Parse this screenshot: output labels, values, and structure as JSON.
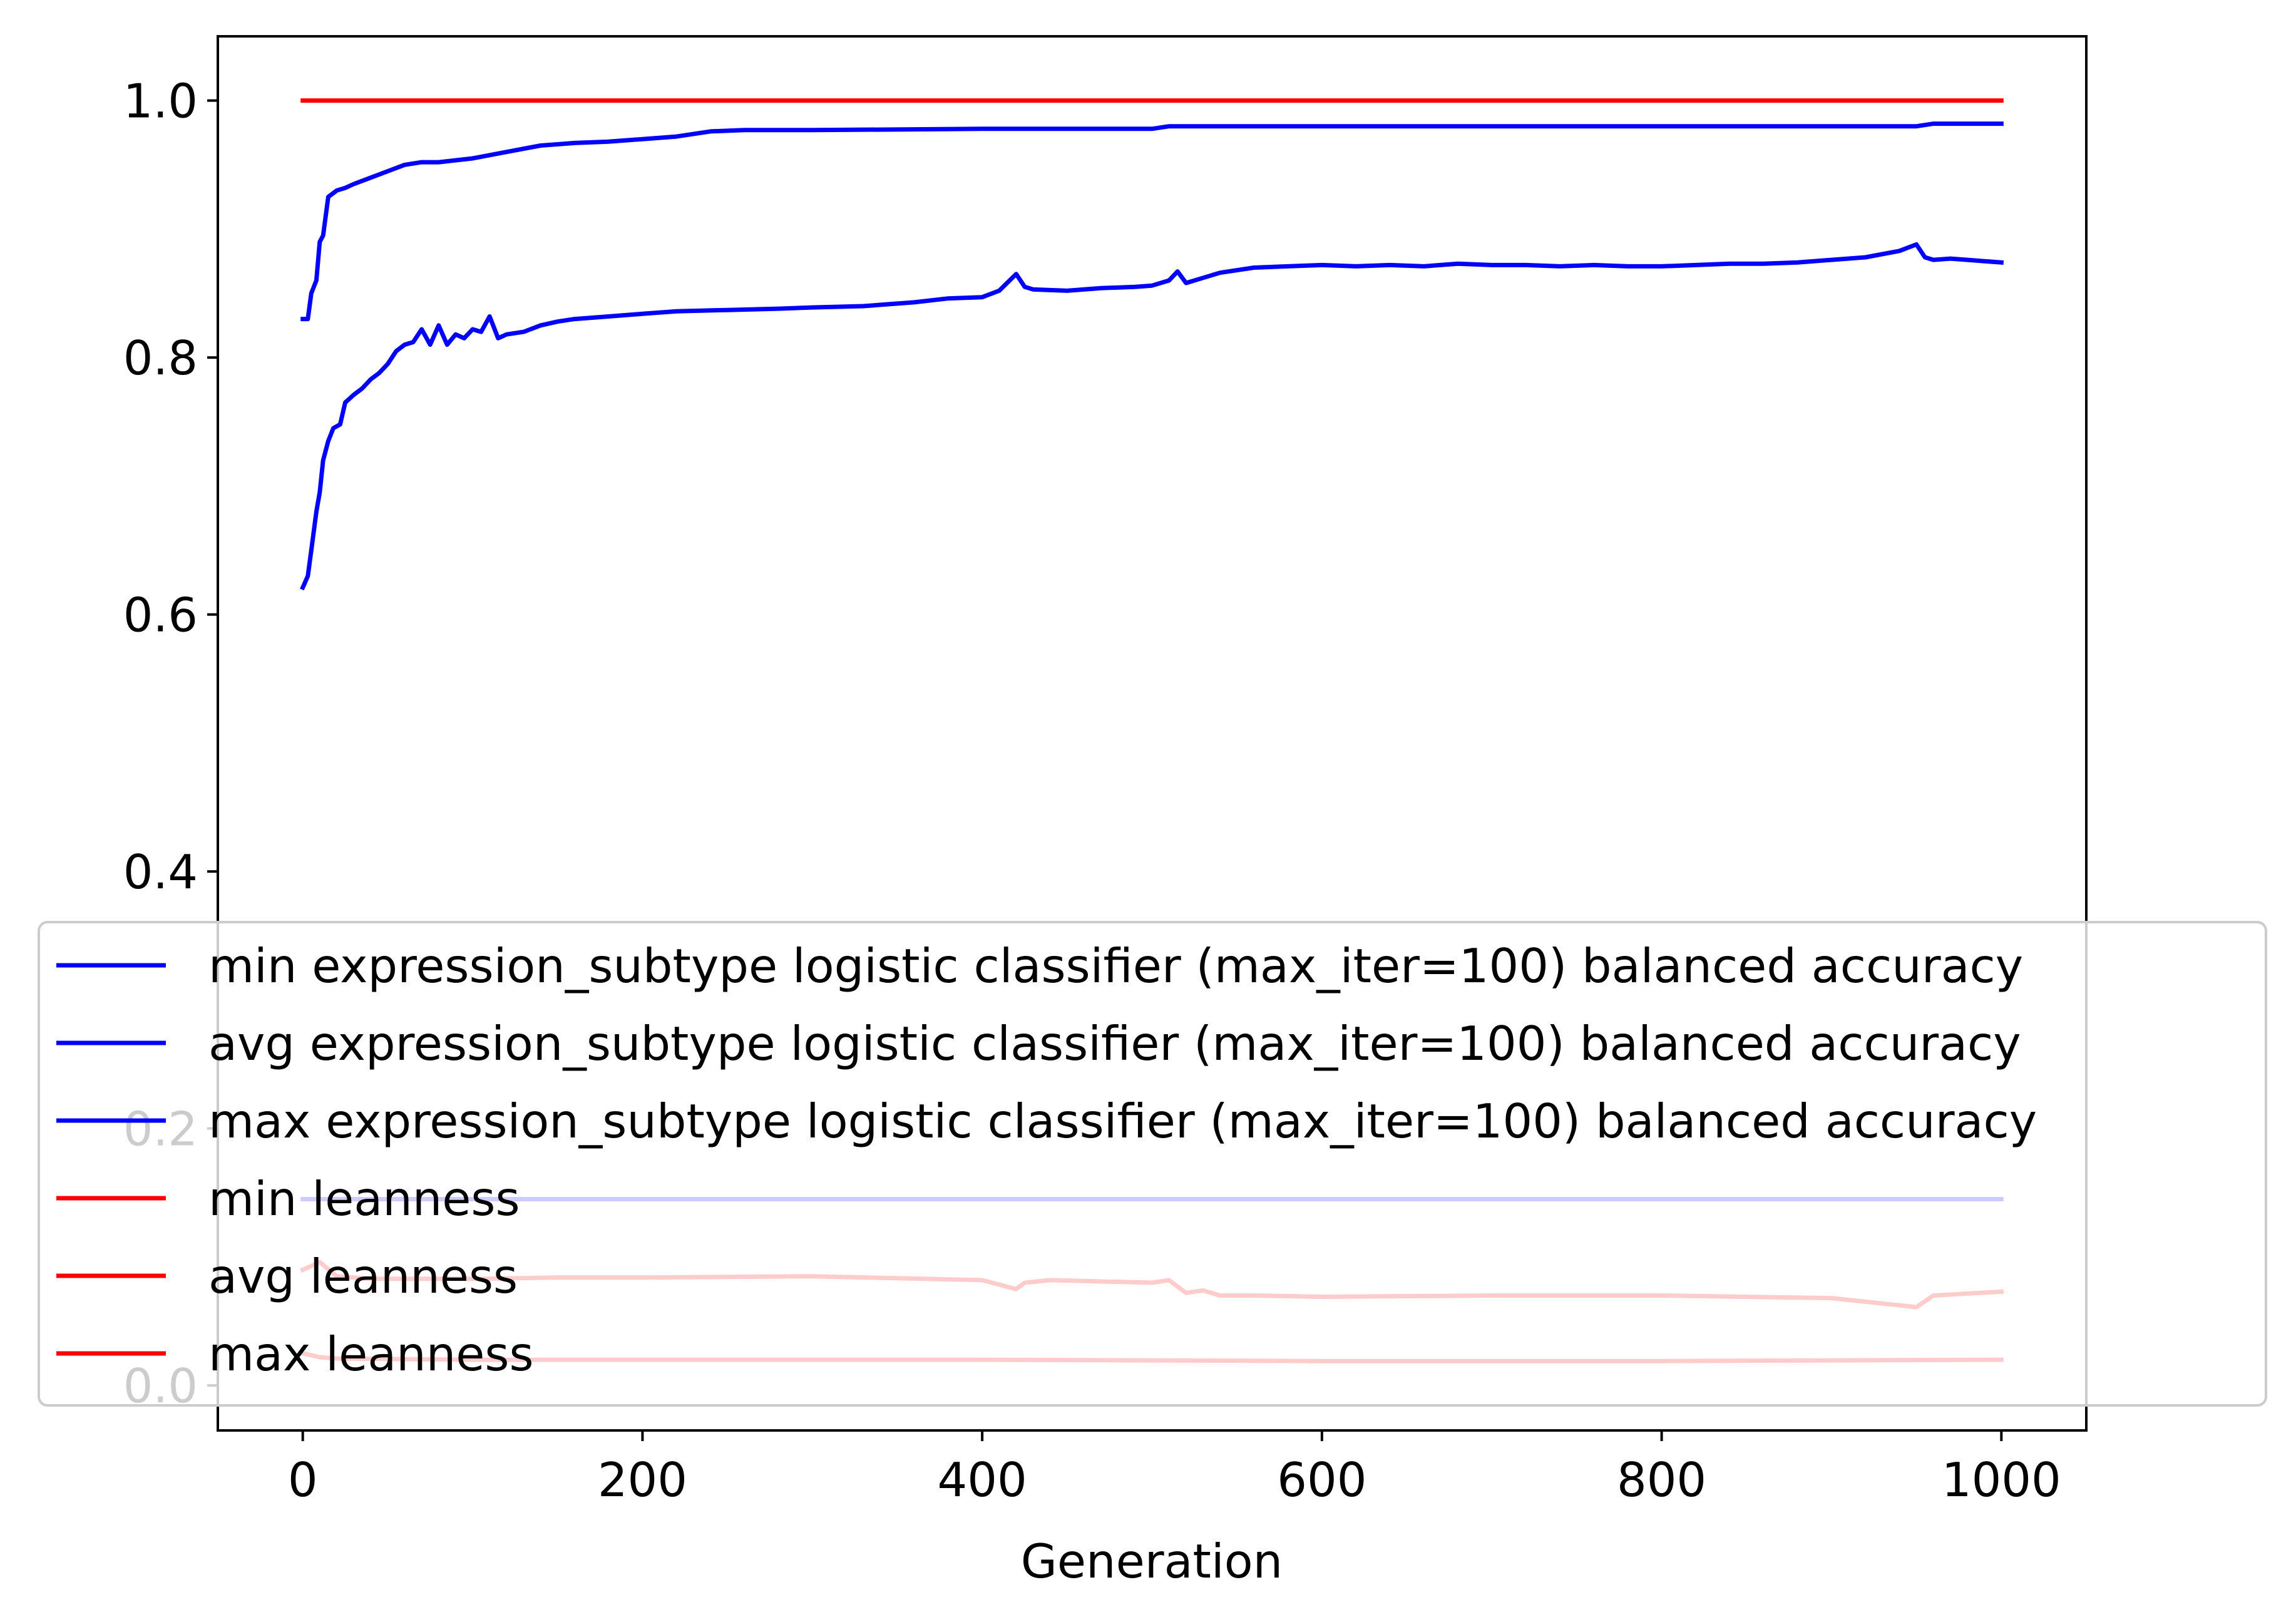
{
  "chart_data": {
    "type": "line",
    "title": "",
    "xlabel": "Generation",
    "ylabel": "",
    "xlim": [
      -50,
      1050
    ],
    "ylim": [
      -0.035,
      1.05
    ],
    "xticks": [
      0,
      200,
      400,
      600,
      800,
      1000
    ],
    "xtick_labels": [
      "0",
      "200",
      "400",
      "600",
      "800",
      "1000"
    ],
    "yticks": [
      0.0,
      0.2,
      0.4,
      0.6,
      0.8,
      1.0
    ],
    "ytick_labels": [
      "0.0",
      "0.2",
      "0.4",
      "0.6",
      "0.8",
      "1.0"
    ],
    "grid": false,
    "legend_position": "lower-left",
    "series": [
      {
        "name": "min expression_subtype logistic classifier (max_iter=100) balanced accuracy",
        "color": "#0000ff",
        "x": [
          0,
          1000
        ],
        "y": [
          0.145,
          0.145
        ]
      },
      {
        "name": "avg expression_subtype logistic classifier (max_iter=100) balanced accuracy",
        "color": "#0000ff",
        "x": [
          0,
          3,
          5,
          8,
          10,
          12,
          15,
          18,
          22,
          25,
          30,
          35,
          40,
          45,
          50,
          55,
          60,
          65,
          70,
          75,
          80,
          85,
          90,
          95,
          100,
          105,
          110,
          115,
          120,
          130,
          140,
          150,
          160,
          180,
          200,
          220,
          250,
          280,
          300,
          330,
          360,
          380,
          400,
          410,
          420,
          425,
          430,
          450,
          470,
          490,
          500,
          510,
          515,
          520,
          540,
          560,
          580,
          600,
          620,
          640,
          660,
          680,
          700,
          720,
          740,
          760,
          780,
          800,
          820,
          840,
          860,
          880,
          900,
          920,
          940,
          950,
          955,
          960,
          970,
          980,
          990,
          1000
        ],
        "y": [
          0.621,
          0.63,
          0.65,
          0.68,
          0.695,
          0.72,
          0.735,
          0.745,
          0.748,
          0.765,
          0.771,
          0.776,
          0.783,
          0.788,
          0.795,
          0.805,
          0.81,
          0.812,
          0.822,
          0.81,
          0.825,
          0.81,
          0.818,
          0.815,
          0.822,
          0.82,
          0.832,
          0.815,
          0.818,
          0.82,
          0.825,
          0.828,
          0.83,
          0.832,
          0.834,
          0.836,
          0.837,
          0.838,
          0.839,
          0.84,
          0.843,
          0.846,
          0.847,
          0.852,
          0.865,
          0.855,
          0.853,
          0.852,
          0.854,
          0.855,
          0.856,
          0.86,
          0.867,
          0.858,
          0.866,
          0.87,
          0.871,
          0.872,
          0.871,
          0.872,
          0.871,
          0.873,
          0.872,
          0.872,
          0.871,
          0.872,
          0.871,
          0.871,
          0.872,
          0.873,
          0.873,
          0.874,
          0.876,
          0.878,
          0.883,
          0.888,
          0.878,
          0.876,
          0.877,
          0.876,
          0.875,
          0.874
        ]
      },
      {
        "name": "max expression_subtype logistic classifier (max_iter=100) balanced accuracy",
        "color": "#0000ff",
        "x": [
          0,
          3,
          5,
          8,
          10,
          12,
          15,
          20,
          25,
          30,
          40,
          50,
          60,
          70,
          80,
          100,
          120,
          140,
          160,
          180,
          200,
          220,
          240,
          260,
          300,
          400,
          500,
          510,
          600,
          700,
          800,
          900,
          950,
          960,
          1000
        ],
        "y": [
          0.83,
          0.83,
          0.85,
          0.86,
          0.89,
          0.895,
          0.925,
          0.93,
          0.932,
          0.935,
          0.94,
          0.945,
          0.95,
          0.952,
          0.952,
          0.955,
          0.96,
          0.965,
          0.967,
          0.968,
          0.97,
          0.972,
          0.976,
          0.977,
          0.977,
          0.978,
          0.978,
          0.98,
          0.98,
          0.98,
          0.98,
          0.98,
          0.98,
          0.982,
          0.982
        ]
      },
      {
        "name": "min leanness",
        "color": "#ff0000",
        "x": [
          0,
          10,
          20,
          100,
          200,
          400,
          600,
          800,
          1000
        ],
        "y": [
          0.025,
          0.022,
          0.021,
          0.02,
          0.02,
          0.02,
          0.019,
          0.019,
          0.02
        ]
      },
      {
        "name": "avg leanness",
        "color": "#ff0000",
        "x": [
          0,
          10,
          20,
          40,
          60,
          100,
          150,
          200,
          300,
          400,
          420,
          425,
          440,
          500,
          510,
          520,
          530,
          540,
          560,
          600,
          700,
          800,
          900,
          950,
          960,
          1000
        ],
        "y": [
          0.09,
          0.096,
          0.085,
          0.083,
          0.083,
          0.083,
          0.084,
          0.084,
          0.085,
          0.082,
          0.075,
          0.08,
          0.082,
          0.08,
          0.082,
          0.072,
          0.074,
          0.07,
          0.07,
          0.069,
          0.07,
          0.07,
          0.068,
          0.061,
          0.07,
          0.073
        ]
      },
      {
        "name": "max leanness",
        "color": "#ff0000",
        "x": [
          0,
          1000
        ],
        "y": [
          1.0,
          1.0
        ]
      }
    ]
  }
}
